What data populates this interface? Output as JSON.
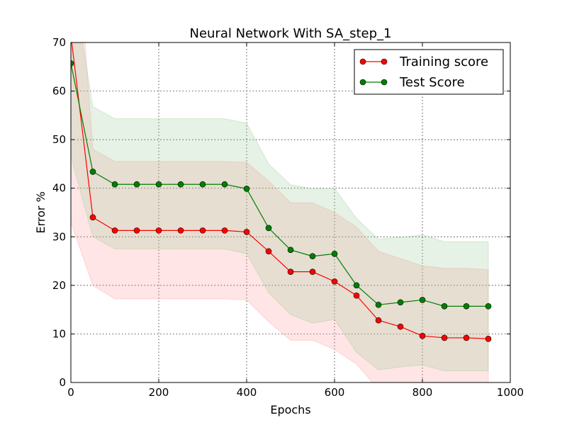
{
  "chart_data": {
    "type": "line",
    "title": "Neural Network With SA_step_1",
    "xlabel": "Epochs",
    "ylabel": "Error %",
    "xlim": [
      0,
      1000
    ],
    "ylim": [
      0,
      70
    ],
    "xticks": [
      "0",
      "200",
      "400",
      "600",
      "800",
      "1000"
    ],
    "yticks": [
      "0",
      "10",
      "20",
      "30",
      "40",
      "50",
      "60",
      "70"
    ],
    "grid": true,
    "legend_position": "top-right",
    "x": [
      0,
      50,
      100,
      150,
      200,
      250,
      300,
      350,
      400,
      450,
      500,
      550,
      600,
      650,
      700,
      750,
      800,
      850,
      900,
      950
    ],
    "series": [
      {
        "name": "Training score",
        "color": "#ff0000",
        "band_color": "#ff9999",
        "values": [
          71.5,
          34.0,
          31.3,
          31.3,
          31.3,
          31.3,
          31.3,
          31.3,
          31.0,
          27.0,
          22.8,
          22.8,
          20.8,
          17.9,
          12.8,
          11.5,
          9.6,
          9.2,
          9.2,
          9.0
        ],
        "band_upper": [
          110,
          48,
          45.5,
          45.5,
          45.5,
          45.5,
          45.5,
          45.5,
          45.3,
          41.5,
          37.0,
          37.0,
          35.0,
          32.0,
          27.0,
          25.5,
          24.0,
          23.5,
          23.5,
          23.2
        ],
        "band_lower": [
          33,
          20,
          17.2,
          17.2,
          17.2,
          17.2,
          17.2,
          17.2,
          17.0,
          12.5,
          8.7,
          8.7,
          6.8,
          3.8,
          -1.4,
          -2.5,
          -4.8,
          -5.1,
          -5.1,
          -5.2
        ]
      },
      {
        "name": "Test Score",
        "color": "#007f00",
        "band_color": "#99cc99",
        "values": [
          65.7,
          43.4,
          40.8,
          40.8,
          40.8,
          40.8,
          40.8,
          40.8,
          39.9,
          31.8,
          27.3,
          26.0,
          26.5,
          20.0,
          16.0,
          16.5,
          17.0,
          15.7,
          15.7,
          15.7
        ],
        "band_upper": [
          85,
          56.8,
          54.3,
          54.3,
          54.3,
          54.3,
          54.3,
          54.3,
          53.4,
          45.0,
          40.7,
          39.9,
          40.0,
          33.8,
          29.5,
          29.9,
          30.4,
          29.0,
          29.0,
          29.0
        ],
        "band_lower": [
          46.5,
          30.0,
          27.5,
          27.5,
          27.5,
          27.5,
          27.5,
          27.5,
          26.5,
          18.5,
          14.0,
          12.2,
          13.0,
          6.2,
          2.6,
          3.2,
          3.6,
          2.4,
          2.4,
          2.4
        ]
      }
    ]
  }
}
